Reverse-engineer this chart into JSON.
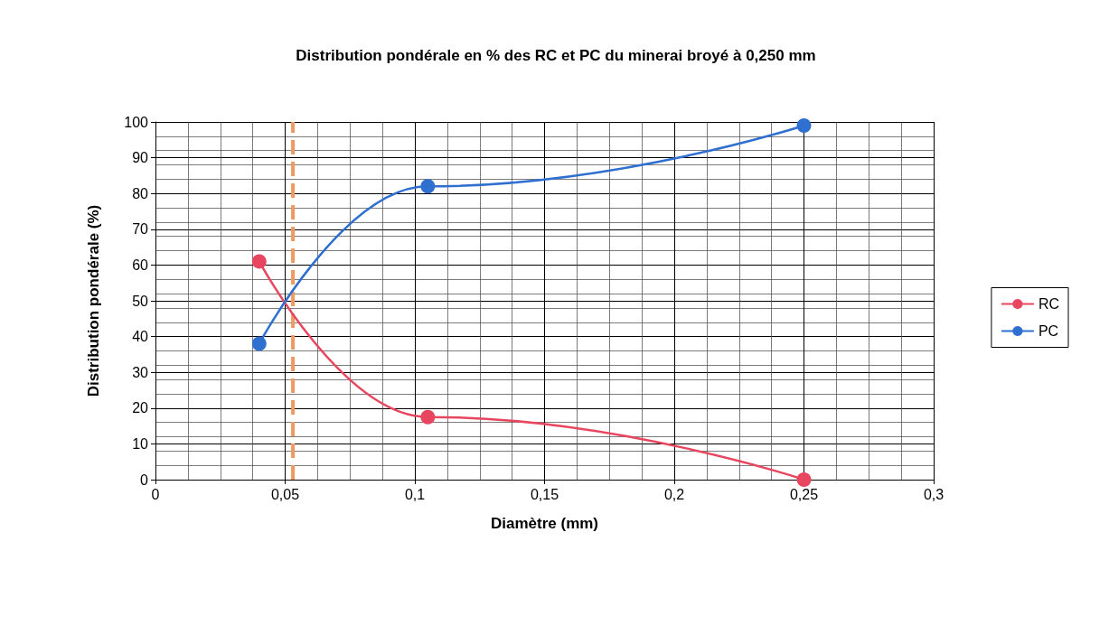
{
  "chart_data": {
    "type": "line",
    "title": "Distribution pondérale en % des RC et PC du minerai broyé à 0,250 mm",
    "xlabel": "Diamètre (mm)",
    "ylabel": "Distribution pondérale (%)",
    "xlim": [
      0,
      0.3
    ],
    "xticks": [
      0,
      {
        "value": 0.05,
        "label": "0,05"
      },
      {
        "value": 0.1,
        "label": "0,1"
      },
      {
        "value": 0.15,
        "label": "0,15"
      },
      {
        "value": 0.2,
        "label": "0,2"
      },
      {
        "value": 0.25,
        "label": "0,25"
      },
      {
        "value": 0.3,
        "label": "0,3"
      }
    ],
    "ylim": [
      0,
      100
    ],
    "yticks": [
      0,
      10,
      20,
      30,
      40,
      50,
      60,
      70,
      80,
      90,
      100
    ],
    "grid": true,
    "legend": "right",
    "marker": "circle",
    "line_style": "solid",
    "series": [
      {
        "name": "RC",
        "color": "#e8455e",
        "x": [
          0.04,
          0.105,
          0.25
        ],
        "values": [
          61,
          17.5,
          0
        ]
      },
      {
        "name": "PC",
        "color": "#2f6fd0",
        "x": [
          0.04,
          0.105,
          0.25
        ],
        "values": [
          38,
          82,
          99
        ]
      }
    ],
    "ref_lines": [
      {
        "axis": "x",
        "value": 0.053,
        "color": "#ee9a60",
        "line_style": "dashed"
      }
    ]
  }
}
